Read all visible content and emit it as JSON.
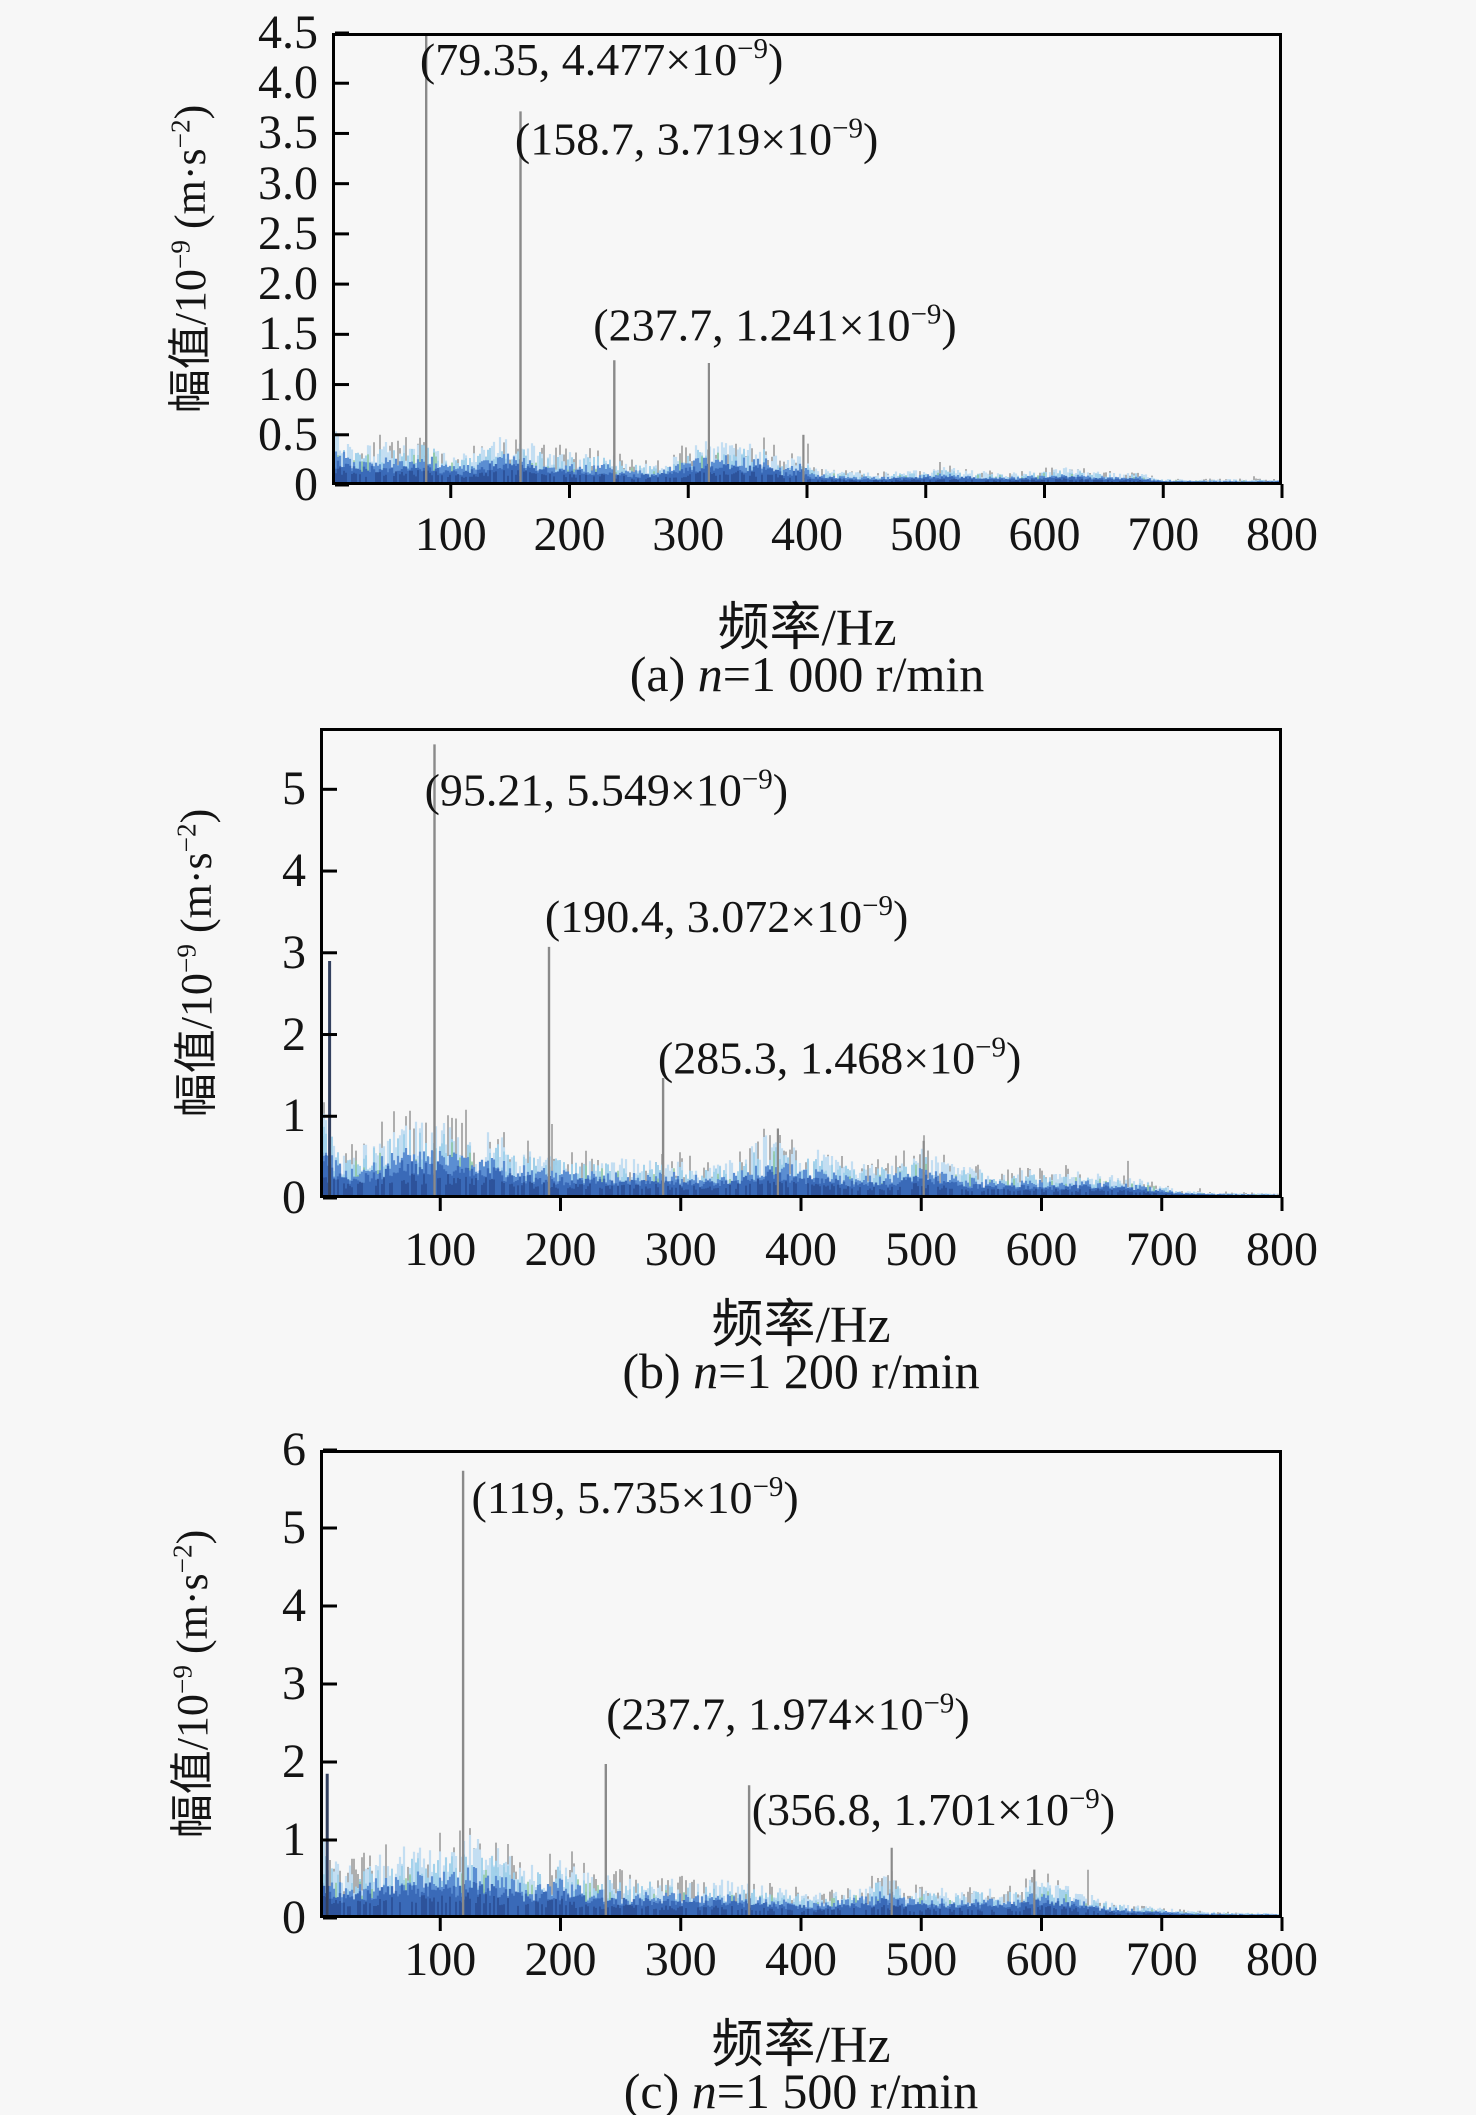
{
  "page": {
    "background": "#f7f7f7",
    "text_color": "#141414",
    "frame_color": "#000000",
    "peak_spike_color": "#8a8a8a",
    "dc_spike_color": "#33405e",
    "trace_colors": [
      "#6b6b6b",
      "#c3def2",
      "#9fd0ea",
      "#8cc79a",
      "#5b8ed2",
      "#3a6ab8",
      "#2b4f96"
    ]
  },
  "chart_data": [
    {
      "type": "line",
      "panel": "a",
      "title_parts": {
        "prefix": "(a) ",
        "var": "n",
        "suffix": "=1 000 r/min"
      },
      "xlabel": "频率/Hz",
      "ylabel": "幅值/10⁻⁹ (m·s⁻²)",
      "xlim": [
        0,
        800
      ],
      "ylim": [
        0,
        4.5
      ],
      "xticks": [
        100,
        200,
        300,
        400,
        500,
        600,
        700,
        800
      ],
      "yticks": [
        {
          "v": 4.5,
          "label": "4.5"
        },
        {
          "v": 4.0,
          "label": "4.0"
        },
        {
          "v": 3.5,
          "label": "3.5"
        },
        {
          "v": 3.0,
          "label": "3.0"
        },
        {
          "v": 2.5,
          "label": "2.5"
        },
        {
          "v": 2.0,
          "label": "2.0"
        },
        {
          "v": 1.5,
          "label": "1.5"
        },
        {
          "v": 1.0,
          "label": "1.0"
        },
        {
          "v": 0.5,
          "label": "0.5"
        },
        {
          "v": 0,
          "label": "0"
        }
      ],
      "peaks": [
        {
          "f": 79.35,
          "a": 4.477
        },
        {
          "f": 158.7,
          "a": 3.719
        },
        {
          "f": 237.7,
          "a": 1.241
        }
      ],
      "minor_peaks": [
        {
          "f": 317.4,
          "a": 1.215
        },
        {
          "f": 397.0,
          "a": 0.5
        }
      ],
      "annotations": [
        {
          "text": "(79.35, 4.477×10⁻⁹)",
          "f": 74,
          "a": 4.24
        },
        {
          "text": "(158.7, 3.719×10⁻⁹)",
          "f": 154,
          "a": 3.45
        },
        {
          "text": "(237.7, 1.241×10⁻⁹)",
          "f": 220,
          "a": 1.6
        }
      ],
      "noise_envelope": [
        [
          0,
          0.5
        ],
        [
          8,
          0.55
        ],
        [
          20,
          0.35
        ],
        [
          40,
          0.42
        ],
        [
          60,
          0.38
        ],
        [
          80,
          0.48
        ],
        [
          95,
          0.3
        ],
        [
          115,
          0.3
        ],
        [
          135,
          0.45
        ],
        [
          150,
          0.48
        ],
        [
          165,
          0.42
        ],
        [
          185,
          0.32
        ],
        [
          210,
          0.3
        ],
        [
          230,
          0.33
        ],
        [
          250,
          0.22
        ],
        [
          270,
          0.2
        ],
        [
          290,
          0.3
        ],
        [
          310,
          0.42
        ],
        [
          330,
          0.45
        ],
        [
          350,
          0.4
        ],
        [
          365,
          0.42
        ],
        [
          380,
          0.25
        ],
        [
          395,
          0.32
        ],
        [
          405,
          0.15
        ],
        [
          430,
          0.12
        ],
        [
          460,
          0.1
        ],
        [
          490,
          0.13
        ],
        [
          515,
          0.16
        ],
        [
          540,
          0.13
        ],
        [
          565,
          0.1
        ],
        [
          590,
          0.12
        ],
        [
          615,
          0.16
        ],
        [
          640,
          0.12
        ],
        [
          665,
          0.1
        ],
        [
          680,
          0.12
        ],
        [
          695,
          0.05
        ],
        [
          720,
          0.04
        ],
        [
          760,
          0.04
        ],
        [
          800,
          0.04
        ]
      ],
      "seed": 101
    },
    {
      "type": "line",
      "panel": "b",
      "title_parts": {
        "prefix": "(b) ",
        "var": "n",
        "suffix": "=1 200 r/min"
      },
      "xlabel": "频率/Hz",
      "ylabel": "幅值/10⁻⁹ (m·s⁻²)",
      "xlim": [
        0,
        800
      ],
      "ylim": [
        0,
        5.75
      ],
      "xticks": [
        100,
        200,
        300,
        400,
        500,
        600,
        700,
        800
      ],
      "yticks": [
        {
          "v": 5,
          "label": "5"
        },
        {
          "v": 4,
          "label": "4"
        },
        {
          "v": 3,
          "label": "3"
        },
        {
          "v": 2,
          "label": "2"
        },
        {
          "v": 1,
          "label": "1"
        },
        {
          "v": 0,
          "label": "0"
        }
      ],
      "peaks": [
        {
          "f": 95.21,
          "a": 5.549
        },
        {
          "f": 190.4,
          "a": 3.072
        },
        {
          "f": 285.3,
          "a": 1.468
        }
      ],
      "minor_peaks": [
        {
          "f": 8,
          "a": 2.9,
          "dark": true
        },
        {
          "f": 380.8,
          "a": 0.85
        },
        {
          "f": 502,
          "a": 0.7
        }
      ],
      "annotations": [
        {
          "text": "(95.21, 5.549×10⁻⁹)",
          "f": 87,
          "a": 5.0
        },
        {
          "text": "(190.4, 3.072×10⁻⁹)",
          "f": 187,
          "a": 3.45
        },
        {
          "text": "(285.3, 1.468×10⁻⁹)",
          "f": 281,
          "a": 1.72
        }
      ],
      "noise_envelope": [
        [
          0,
          1.25
        ],
        [
          6,
          1.1
        ],
        [
          14,
          0.7
        ],
        [
          25,
          0.55
        ],
        [
          40,
          0.65
        ],
        [
          55,
          0.85
        ],
        [
          70,
          1.0
        ],
        [
          85,
          0.9
        ],
        [
          100,
          0.95
        ],
        [
          115,
          0.85
        ],
        [
          130,
          0.75
        ],
        [
          145,
          0.8
        ],
        [
          160,
          0.65
        ],
        [
          175,
          0.6
        ],
        [
          195,
          0.55
        ],
        [
          215,
          0.5
        ],
        [
          235,
          0.52
        ],
        [
          255,
          0.45
        ],
        [
          275,
          0.5
        ],
        [
          295,
          0.48
        ],
        [
          315,
          0.42
        ],
        [
          335,
          0.45
        ],
        [
          350,
          0.52
        ],
        [
          362,
          0.68
        ],
        [
          375,
          0.78
        ],
        [
          388,
          0.68
        ],
        [
          400,
          0.55
        ],
        [
          415,
          0.58
        ],
        [
          430,
          0.48
        ],
        [
          450,
          0.4
        ],
        [
          470,
          0.42
        ],
        [
          488,
          0.52
        ],
        [
          502,
          0.62
        ],
        [
          515,
          0.5
        ],
        [
          530,
          0.4
        ],
        [
          550,
          0.34
        ],
        [
          570,
          0.3
        ],
        [
          590,
          0.34
        ],
        [
          610,
          0.3
        ],
        [
          628,
          0.32
        ],
        [
          648,
          0.3
        ],
        [
          668,
          0.26
        ],
        [
          688,
          0.2
        ],
        [
          700,
          0.14
        ],
        [
          715,
          0.08
        ],
        [
          740,
          0.05
        ],
        [
          770,
          0.04
        ],
        [
          800,
          0.03
        ]
      ],
      "seed": 202
    },
    {
      "type": "line",
      "panel": "c",
      "title_parts": {
        "prefix": "(c) ",
        "var": "n",
        "suffix": "=1 500 r/min"
      },
      "xlabel": "频率/Hz",
      "ylabel": "幅值/10⁻⁹ (m·s⁻²)",
      "xlim": [
        0,
        800
      ],
      "ylim": [
        0,
        6
      ],
      "xticks": [
        100,
        200,
        300,
        400,
        500,
        600,
        700,
        800
      ],
      "yticks": [
        {
          "v": 6,
          "label": "6"
        },
        {
          "v": 5,
          "label": "5"
        },
        {
          "v": 4,
          "label": "4"
        },
        {
          "v": 3,
          "label": "3"
        },
        {
          "v": 2,
          "label": "2"
        },
        {
          "v": 1,
          "label": "1"
        },
        {
          "v": 0,
          "label": "0"
        }
      ],
      "peaks": [
        {
          "f": 119,
          "a": 5.735
        },
        {
          "f": 237.7,
          "a": 1.974
        },
        {
          "f": 356.8,
          "a": 1.701
        }
      ],
      "minor_peaks": [
        {
          "f": 6,
          "a": 1.85,
          "dark": true
        },
        {
          "f": 475.4,
          "a": 0.9
        },
        {
          "f": 594,
          "a": 0.62
        }
      ],
      "annotations": [
        {
          "text": "(119, 5.735×10⁻⁹)",
          "f": 126,
          "a": 5.4
        },
        {
          "text": "(237.7, 1.974×10⁻⁹)",
          "f": 238,
          "a": 2.62
        },
        {
          "text": "(356.8, 1.701×10⁻⁹)",
          "f": 359,
          "a": 1.4
        }
      ],
      "noise_envelope": [
        [
          0,
          1.05
        ],
        [
          8,
          0.85
        ],
        [
          20,
          0.65
        ],
        [
          35,
          0.72
        ],
        [
          50,
          0.82
        ],
        [
          65,
          0.9
        ],
        [
          80,
          0.95
        ],
        [
          95,
          1.0
        ],
        [
          110,
          0.92
        ],
        [
          125,
          1.05
        ],
        [
          140,
          0.95
        ],
        [
          155,
          0.82
        ],
        [
          170,
          0.65
        ],
        [
          185,
          0.68
        ],
        [
          200,
          0.78
        ],
        [
          215,
          0.65
        ],
        [
          230,
          0.58
        ],
        [
          245,
          0.55
        ],
        [
          260,
          0.5
        ],
        [
          275,
          0.52
        ],
        [
          295,
          0.48
        ],
        [
          315,
          0.44
        ],
        [
          335,
          0.48
        ],
        [
          355,
          0.44
        ],
        [
          375,
          0.38
        ],
        [
          395,
          0.34
        ],
        [
          415,
          0.3
        ],
        [
          435,
          0.34
        ],
        [
          452,
          0.42
        ],
        [
          468,
          0.55
        ],
        [
          480,
          0.48
        ],
        [
          495,
          0.35
        ],
        [
          510,
          0.38
        ],
        [
          530,
          0.34
        ],
        [
          548,
          0.38
        ],
        [
          565,
          0.34
        ],
        [
          580,
          0.38
        ],
        [
          595,
          0.5
        ],
        [
          610,
          0.46
        ],
        [
          625,
          0.38
        ],
        [
          640,
          0.28
        ],
        [
          660,
          0.18
        ],
        [
          680,
          0.14
        ],
        [
          700,
          0.12
        ],
        [
          720,
          0.07
        ],
        [
          750,
          0.05
        ],
        [
          800,
          0.04
        ]
      ],
      "seed": 303
    }
  ]
}
